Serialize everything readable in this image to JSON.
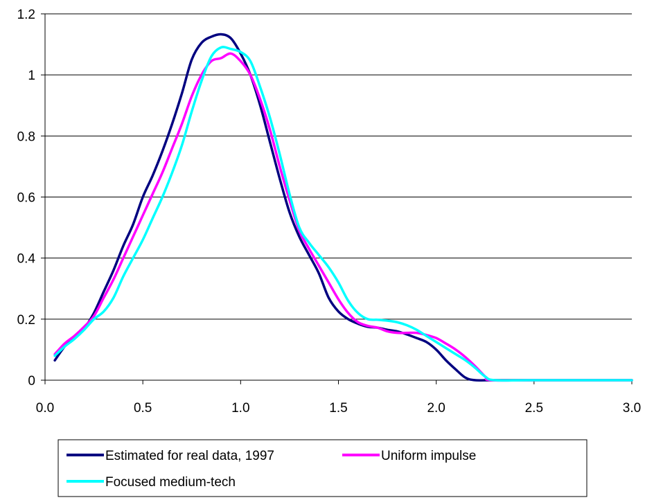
{
  "chart_data": {
    "type": "line",
    "title": "",
    "xlabel": "",
    "ylabel": "",
    "xlim": [
      0,
      3.0
    ],
    "ylim": [
      0,
      1.2
    ],
    "x_ticks": [
      0,
      0.5,
      1.0,
      1.5,
      2.0,
      2.5,
      3.0
    ],
    "x_tick_labels": [
      "0.0",
      "0.5",
      "1.0",
      "1.5",
      "2.0",
      "2.5",
      "3.0"
    ],
    "y_ticks": [
      0,
      0.2,
      0.4,
      0.6,
      0.8,
      1.0,
      1.2
    ],
    "y_tick_labels": [
      "0",
      "0.2",
      "0.4",
      "0.6",
      "0.8",
      "1",
      "1.2"
    ],
    "grid": "horizontal",
    "legend_position": "bottom",
    "series": [
      {
        "name": "Estimated for real data, 1997",
        "color": "#000080",
        "points": [
          [
            0.05,
            0.065
          ],
          [
            0.1,
            0.11
          ],
          [
            0.15,
            0.14
          ],
          [
            0.2,
            0.17
          ],
          [
            0.25,
            0.22
          ],
          [
            0.3,
            0.29
          ],
          [
            0.35,
            0.36
          ],
          [
            0.4,
            0.44
          ],
          [
            0.45,
            0.51
          ],
          [
            0.5,
            0.6
          ],
          [
            0.55,
            0.67
          ],
          [
            0.6,
            0.75
          ],
          [
            0.65,
            0.84
          ],
          [
            0.7,
            0.94
          ],
          [
            0.75,
            1.05
          ],
          [
            0.8,
            1.105
          ],
          [
            0.85,
            1.125
          ],
          [
            0.9,
            1.133
          ],
          [
            0.95,
            1.12
          ],
          [
            1.0,
            1.07
          ],
          [
            1.05,
            1.0
          ],
          [
            1.1,
            0.9
          ],
          [
            1.15,
            0.78
          ],
          [
            1.2,
            0.66
          ],
          [
            1.25,
            0.55
          ],
          [
            1.3,
            0.47
          ],
          [
            1.35,
            0.41
          ],
          [
            1.4,
            0.35
          ],
          [
            1.45,
            0.27
          ],
          [
            1.5,
            0.225
          ],
          [
            1.55,
            0.2
          ],
          [
            1.6,
            0.185
          ],
          [
            1.65,
            0.175
          ],
          [
            1.7,
            0.172
          ],
          [
            1.75,
            0.165
          ],
          [
            1.8,
            0.16
          ],
          [
            1.85,
            0.15
          ],
          [
            1.9,
            0.138
          ],
          [
            1.95,
            0.125
          ],
          [
            2.0,
            0.1
          ],
          [
            2.05,
            0.065
          ],
          [
            2.1,
            0.035
          ],
          [
            2.15,
            0.008
          ],
          [
            2.2,
            0
          ],
          [
            2.3,
            0
          ],
          [
            2.5,
            0
          ],
          [
            3.0,
            0
          ]
        ]
      },
      {
        "name": "Uniform impulse",
        "color": "#ff00ff",
        "points": [
          [
            0.05,
            0.085
          ],
          [
            0.1,
            0.12
          ],
          [
            0.15,
            0.145
          ],
          [
            0.2,
            0.175
          ],
          [
            0.25,
            0.21
          ],
          [
            0.3,
            0.27
          ],
          [
            0.35,
            0.33
          ],
          [
            0.4,
            0.4
          ],
          [
            0.45,
            0.47
          ],
          [
            0.5,
            0.54
          ],
          [
            0.55,
            0.61
          ],
          [
            0.6,
            0.68
          ],
          [
            0.65,
            0.76
          ],
          [
            0.7,
            0.84
          ],
          [
            0.75,
            0.93
          ],
          [
            0.8,
            1.0
          ],
          [
            0.85,
            1.045
          ],
          [
            0.9,
            1.055
          ],
          [
            0.95,
            1.07
          ],
          [
            1.0,
            1.045
          ],
          [
            1.05,
            1.0
          ],
          [
            1.1,
            0.92
          ],
          [
            1.15,
            0.82
          ],
          [
            1.2,
            0.7
          ],
          [
            1.25,
            0.59
          ],
          [
            1.3,
            0.49
          ],
          [
            1.35,
            0.43
          ],
          [
            1.4,
            0.375
          ],
          [
            1.45,
            0.32
          ],
          [
            1.5,
            0.265
          ],
          [
            1.55,
            0.22
          ],
          [
            1.6,
            0.19
          ],
          [
            1.65,
            0.178
          ],
          [
            1.7,
            0.172
          ],
          [
            1.75,
            0.16
          ],
          [
            1.8,
            0.155
          ],
          [
            1.85,
            0.155
          ],
          [
            1.9,
            0.155
          ],
          [
            1.95,
            0.148
          ],
          [
            2.0,
            0.138
          ],
          [
            2.05,
            0.12
          ],
          [
            2.1,
            0.1
          ],
          [
            2.15,
            0.075
          ],
          [
            2.2,
            0.045
          ],
          [
            2.25,
            0.012
          ],
          [
            2.28,
            0
          ],
          [
            2.5,
            0
          ],
          [
            3.0,
            0
          ]
        ]
      },
      {
        "name": "Focused medium-tech",
        "color": "#00ffff",
        "points": [
          [
            0.05,
            0.08
          ],
          [
            0.1,
            0.11
          ],
          [
            0.15,
            0.135
          ],
          [
            0.2,
            0.165
          ],
          [
            0.25,
            0.2
          ],
          [
            0.3,
            0.225
          ],
          [
            0.35,
            0.27
          ],
          [
            0.4,
            0.34
          ],
          [
            0.45,
            0.4
          ],
          [
            0.5,
            0.46
          ],
          [
            0.55,
            0.53
          ],
          [
            0.6,
            0.6
          ],
          [
            0.65,
            0.68
          ],
          [
            0.7,
            0.77
          ],
          [
            0.75,
            0.88
          ],
          [
            0.8,
            0.98
          ],
          [
            0.85,
            1.06
          ],
          [
            0.9,
            1.09
          ],
          [
            0.95,
            1.085
          ],
          [
            1.0,
            1.075
          ],
          [
            1.05,
            1.045
          ],
          [
            1.1,
            0.96
          ],
          [
            1.15,
            0.86
          ],
          [
            1.2,
            0.74
          ],
          [
            1.25,
            0.61
          ],
          [
            1.3,
            0.5
          ],
          [
            1.35,
            0.45
          ],
          [
            1.4,
            0.41
          ],
          [
            1.45,
            0.37
          ],
          [
            1.5,
            0.32
          ],
          [
            1.55,
            0.26
          ],
          [
            1.6,
            0.22
          ],
          [
            1.65,
            0.2
          ],
          [
            1.7,
            0.198
          ],
          [
            1.75,
            0.195
          ],
          [
            1.8,
            0.19
          ],
          [
            1.85,
            0.18
          ],
          [
            1.9,
            0.165
          ],
          [
            1.95,
            0.145
          ],
          [
            2.0,
            0.125
          ],
          [
            2.05,
            0.105
          ],
          [
            2.1,
            0.085
          ],
          [
            2.15,
            0.065
          ],
          [
            2.2,
            0.04
          ],
          [
            2.25,
            0.012
          ],
          [
            2.3,
            0
          ],
          [
            2.5,
            0
          ],
          [
            3.0,
            0
          ]
        ]
      }
    ]
  }
}
